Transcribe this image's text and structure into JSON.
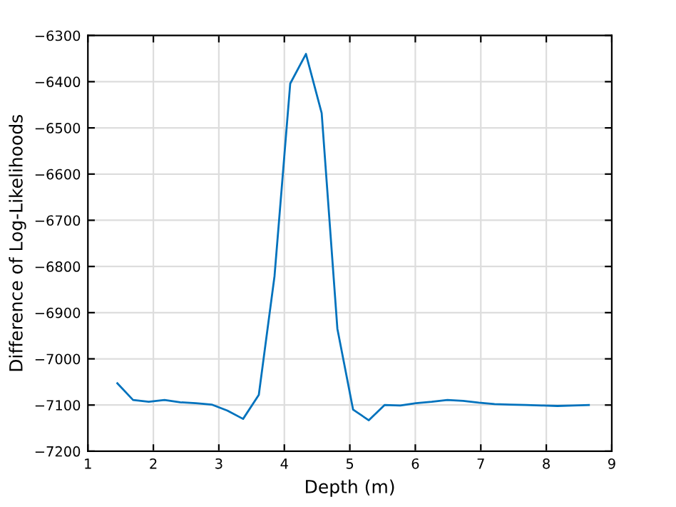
{
  "chart_data": {
    "type": "line",
    "xlabel": "Depth (m)",
    "ylabel": "Difference of Log-Likelihoods",
    "x": [
      1.45,
      1.69,
      1.93,
      2.17,
      2.41,
      2.65,
      2.89,
      3.13,
      3.37,
      3.61,
      3.85,
      4.09,
      4.33,
      4.57,
      4.81,
      5.05,
      5.29,
      5.53,
      5.77,
      6.01,
      6.25,
      6.49,
      6.73,
      6.97,
      7.21,
      7.45,
      7.69,
      7.93,
      8.17,
      8.41,
      8.65
    ],
    "series": [
      {
        "color": "#0072bd",
        "values": [
          -7053,
          -7089,
          -7093,
          -7089,
          -7094,
          -7096,
          -7099,
          -7112,
          -7130,
          -7078,
          -6821,
          -6404,
          -6340,
          -6468,
          -6935,
          -7110,
          -7133,
          -7100,
          -7101,
          -7096,
          -7093,
          -7089,
          -7091,
          -7095,
          -7098,
          -7099,
          -7100,
          -7101,
          -7102,
          -7101,
          -7100
        ]
      }
    ],
    "xlim": [
      1,
      9
    ],
    "xticks": [
      1,
      2,
      3,
      4,
      5,
      6,
      7,
      8,
      9
    ],
    "ylim": [
      -7200,
      -6300
    ],
    "yticks": [
      -7200,
      -7100,
      -7000,
      -6900,
      -6800,
      -6700,
      -6600,
      -6500,
      -6400,
      -6300
    ],
    "grid": true,
    "marker": "none",
    "line_style": "solid",
    "legend": false
  }
}
